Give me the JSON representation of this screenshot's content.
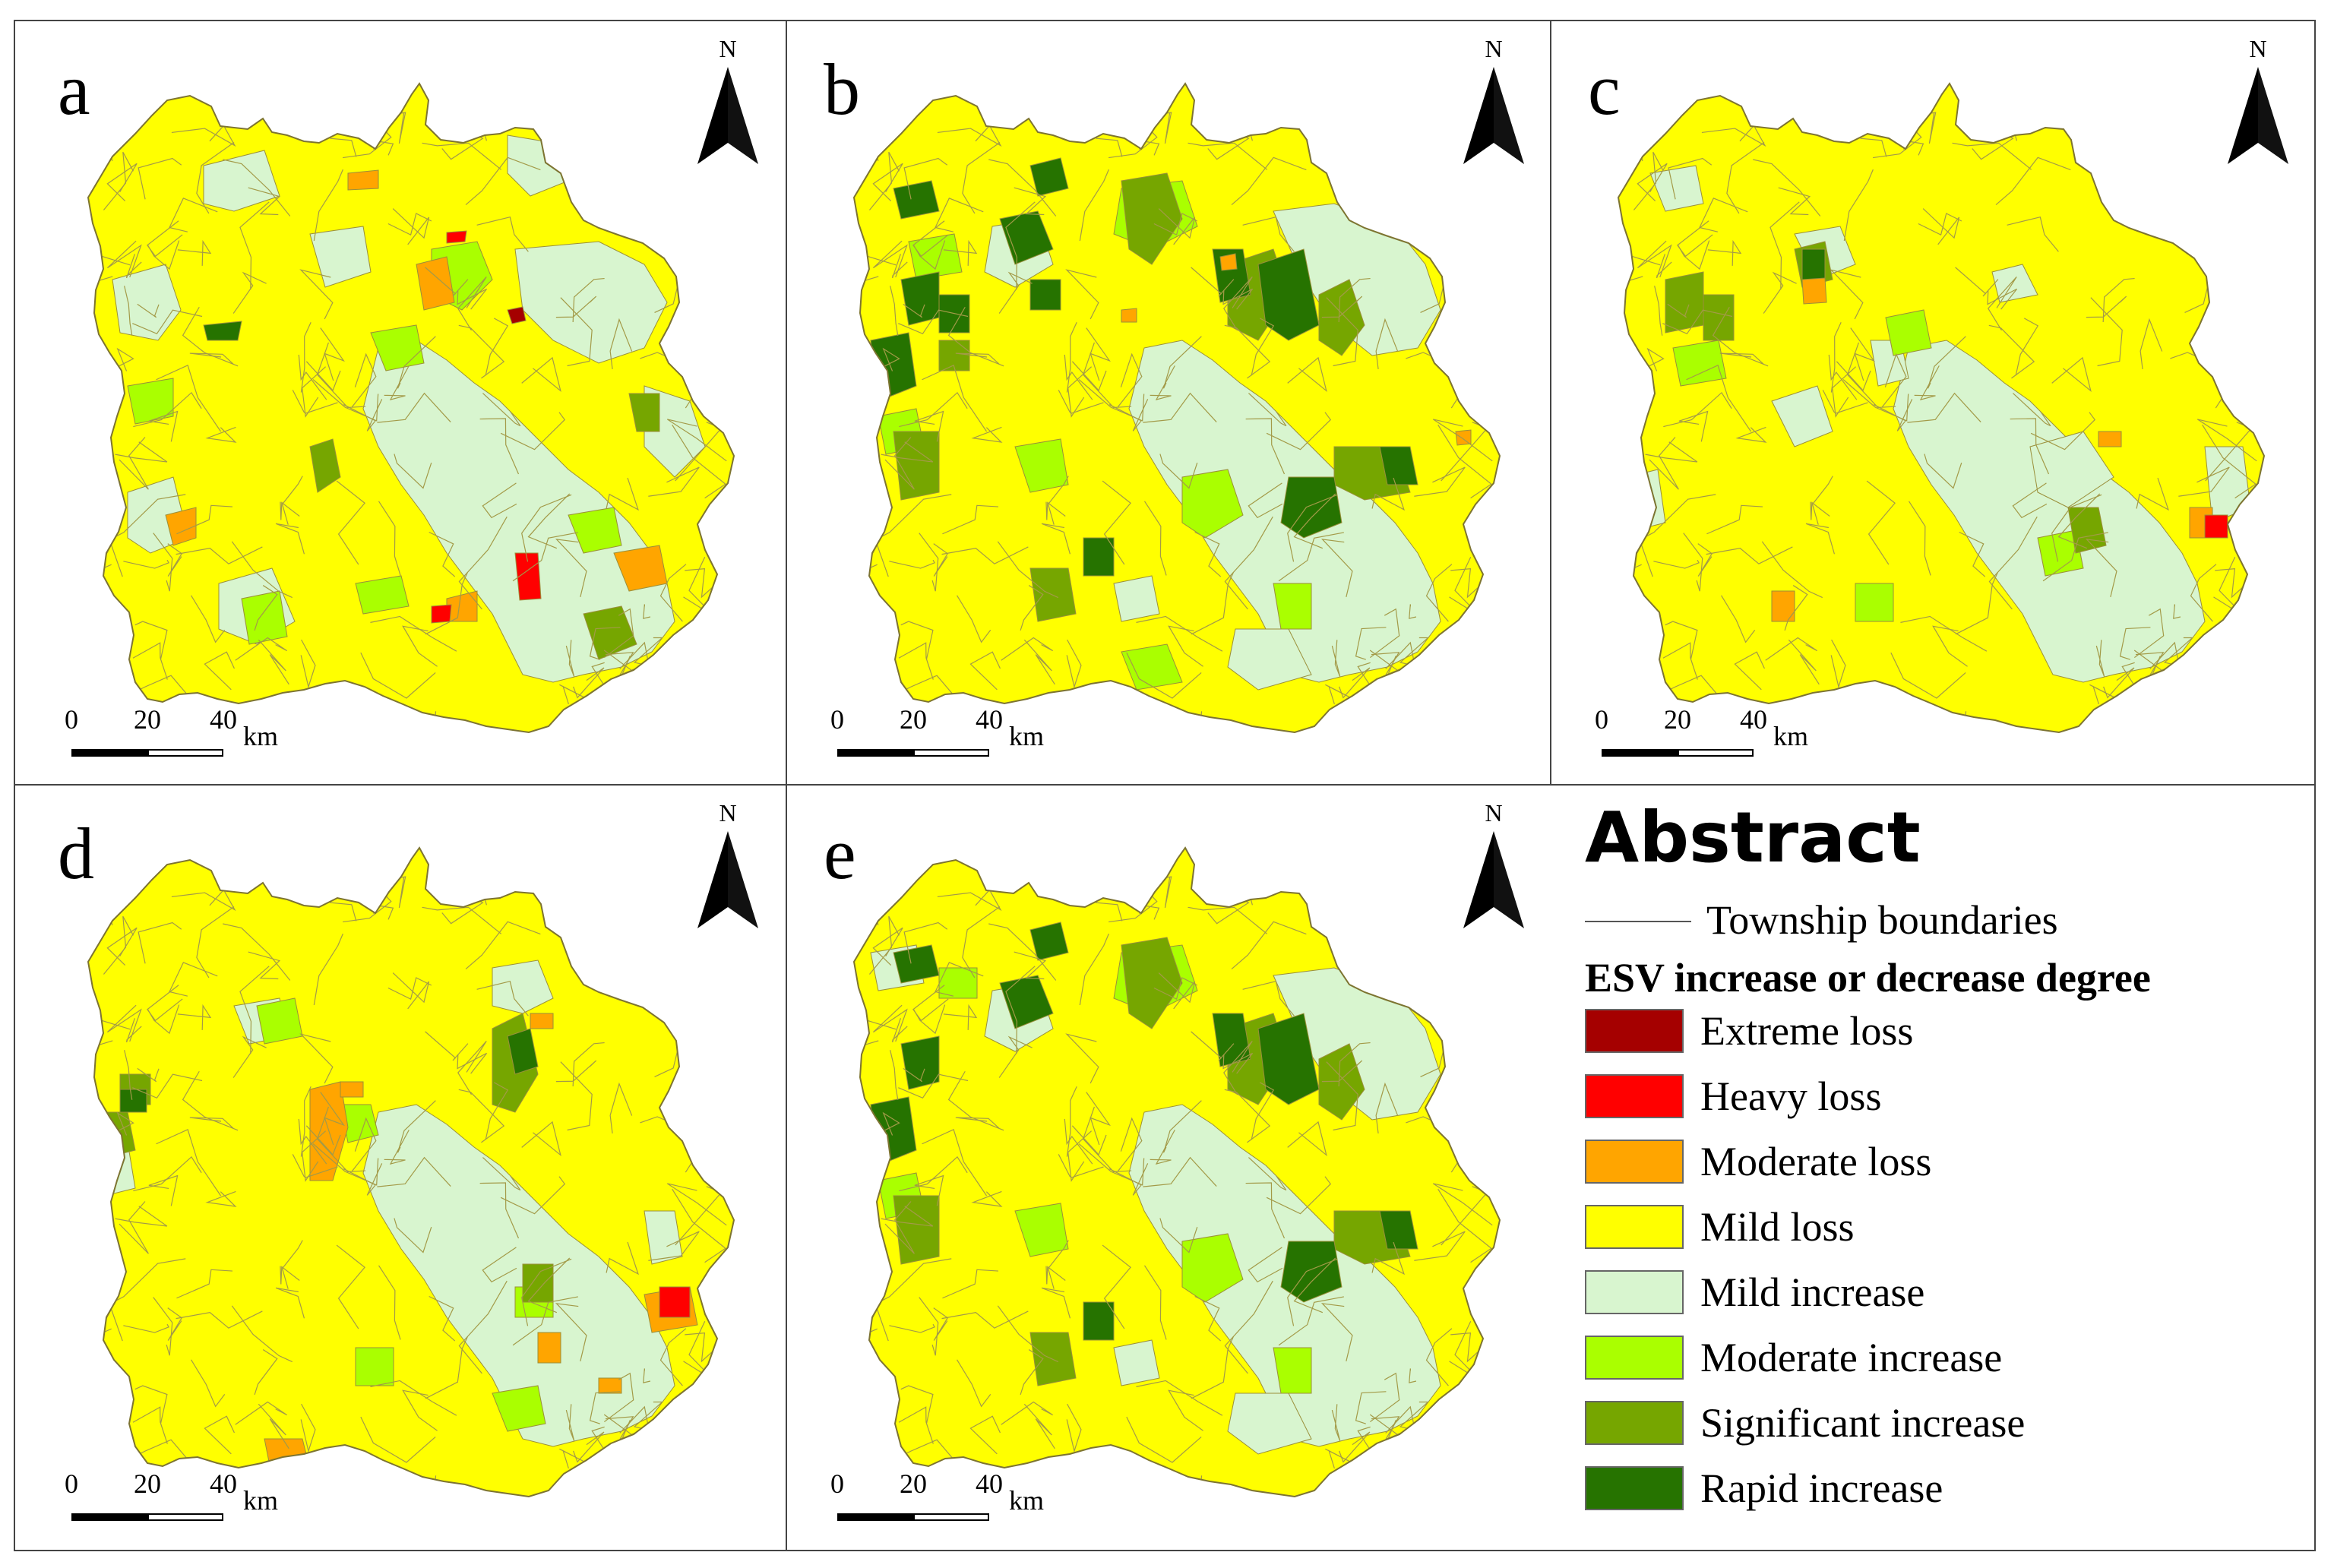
{
  "panels": [
    {
      "letter": "a",
      "north": "N",
      "scale": [
        "0",
        "20",
        "40"
      ],
      "unit": "km"
    },
    {
      "letter": "b",
      "north": "N",
      "scale": [
        "0",
        "20",
        "40"
      ],
      "unit": "km"
    },
    {
      "letter": "c",
      "north": "N",
      "scale": [
        "0",
        "20",
        "40"
      ],
      "unit": "km"
    },
    {
      "letter": "d",
      "north": "N",
      "scale": [
        "0",
        "20",
        "40"
      ],
      "unit": "km"
    },
    {
      "letter": "e",
      "north": "N",
      "scale": [
        "0",
        "20",
        "40"
      ],
      "unit": "km"
    }
  ],
  "legend": {
    "title": "Abstract",
    "boundary_label": "Township boundaries",
    "subtitle": "ESV increase or decrease degree",
    "items": [
      {
        "label": "Extreme loss",
        "color": "#a50000"
      },
      {
        "label": "Heavy loss",
        "color": "#ff0000"
      },
      {
        "label": "Moderate loss",
        "color": "#ffa500"
      },
      {
        "label": "Mild loss",
        "color": "#ffff00"
      },
      {
        "label": "Mild increase",
        "color": "#d8f5cf"
      },
      {
        "label": "Moderate increase",
        "color": "#aaff00"
      },
      {
        "label": "Significant increase",
        "color": "#76a600"
      },
      {
        "label": "Rapid increase",
        "color": "#267300"
      }
    ]
  }
}
